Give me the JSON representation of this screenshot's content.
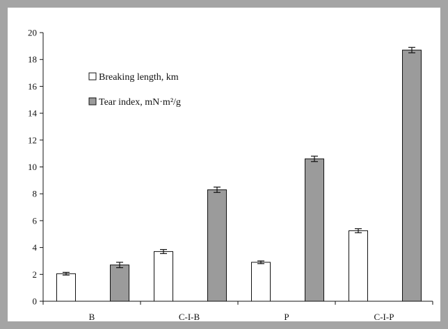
{
  "chart_data": {
    "type": "bar",
    "title": "",
    "xlabel": "",
    "ylabel": "",
    "categories": [
      "B",
      "C-I-B",
      "P",
      "C-I-P"
    ],
    "ylim": [
      0,
      20
    ],
    "yticks": [
      0,
      2,
      4,
      6,
      8,
      10,
      12,
      14,
      16,
      18,
      20
    ],
    "grid": false,
    "legend_position": "top-left",
    "series": [
      {
        "name": "Breaking length, km",
        "values": [
          2.05,
          3.7,
          2.9,
          5.25
        ],
        "errors": [
          0.1,
          0.15,
          0.1,
          0.15
        ],
        "color": "#ffffff"
      },
      {
        "name": "Tear index, mN·m²/g",
        "values": [
          2.7,
          8.3,
          10.6,
          18.7
        ],
        "errors": [
          0.2,
          0.2,
          0.2,
          0.2
        ],
        "color": "#9b9b9b"
      }
    ]
  }
}
